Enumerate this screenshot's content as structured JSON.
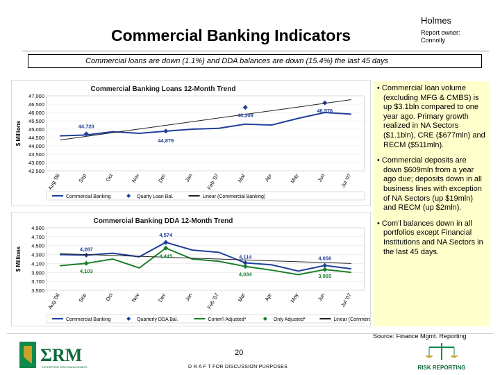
{
  "header": {
    "title": "Commercial Banking Indicators",
    "owner_name": "Holmes",
    "owner_label": "Report owner:",
    "owner_person": "Connolly"
  },
  "summary": "Commercial loans are down (1.1%) and DDA balances are down (15.4%) the last 45 days",
  "chart_data": [
    {
      "type": "line",
      "title": "Commercial Banking Loans 12-Month Trend",
      "ylabel": "$ Millions",
      "xlabel": "",
      "ylim": [
        42500,
        47000
      ],
      "yticks": [
        "47,000",
        "46,500",
        "46,000",
        "45,500",
        "45,000",
        "44,500",
        "44,000",
        "43,500",
        "43,000",
        "42,500"
      ],
      "ytick_values": [
        47000,
        46500,
        46000,
        45500,
        45000,
        44500,
        44000,
        43500,
        43000,
        42500
      ],
      "categories": [
        "Aug '06",
        "Sep",
        "Oct",
        "Nov",
        "Dec",
        "Jan",
        "Feb '07",
        "Mar",
        "Apr",
        "May",
        "Jun",
        "Jul '07"
      ],
      "series": [
        {
          "name": "Commercial Banking",
          "values": [
            44600,
            44650,
            44850,
            44750,
            44879,
            45000,
            45050,
            45300,
            45250,
            45650,
            46000,
            45900
          ],
          "color": "#1f3f99"
        },
        {
          "name": "Quarty Loan Bal.",
          "values": [
            null,
            44720,
            null,
            null,
            44879,
            null,
            null,
            46308,
            null,
            null,
            46576,
            null
          ],
          "color": "#1f3f99"
        },
        {
          "name": "Linear (Commercial Banking)",
          "values": [
            44350,
            44570,
            44790,
            45010,
            45230,
            45450,
            45670,
            45890,
            46110,
            46330,
            46550,
            46770
          ],
          "color": "#222222"
        }
      ],
      "annotations": [
        "44,720",
        "44,879",
        "46,308",
        "46,576"
      ],
      "legend": [
        "Commercial Banking",
        "Quarty Loan Bal.",
        "Linear (Commercial Banking)"
      ],
      "legend_position": "bottom"
    },
    {
      "type": "line",
      "title": "Commercial Banking DDA 12-Month Trend",
      "ylabel": "$ Millions",
      "xlabel": "",
      "ylim": [
        3500,
        4900
      ],
      "yticks": [
        "4,900",
        "4,700",
        "4,500",
        "4,300",
        "4,100",
        "3,900",
        "3,700",
        "3,500"
      ],
      "ytick_values": [
        4900,
        4700,
        4500,
        4300,
        4100,
        3900,
        3700,
        3500
      ],
      "categories": [
        "Aug '06",
        "Sep",
        "Oct",
        "Nov",
        "Dec",
        "Jan",
        "Feb '07",
        "Mar",
        "Apr",
        "May",
        "Jun",
        "Jul '07"
      ],
      "series": [
        {
          "name": "Commercial Banking",
          "values": [
            4300,
            4287,
            4330,
            4250,
            4574,
            4400,
            4350,
            4114,
            4070,
            3930,
            4056,
            3980
          ],
          "color": "#1f3f99"
        },
        {
          "name": "Quarterly DDA Bal.",
          "values": [
            null,
            4287,
            null,
            null,
            4574,
            null,
            null,
            4114,
            null,
            null,
            4056,
            null
          ],
          "color": "#1f3f99"
        },
        {
          "name": "Comm'l Adjusted*",
          "values": [
            4050,
            4103,
            4200,
            4000,
            4445,
            4200,
            4150,
            4034,
            3950,
            3850,
            3965,
            3900
          ],
          "color": "#1a7f2a"
        },
        {
          "name": "Only Adjusted*",
          "values": [
            null,
            4103,
            null,
            null,
            4445,
            null,
            null,
            4034,
            null,
            null,
            3965,
            null
          ],
          "color": "#1a7f2a"
        },
        {
          "name": "Linear (Commercial Banking)",
          "values": [
            4320,
            4300,
            4280,
            4260,
            4240,
            4220,
            4200,
            4180,
            4160,
            4140,
            4120,
            4100
          ],
          "color": "#222222"
        }
      ],
      "annotations": [
        "4,287",
        "4,574",
        "4,114",
        "4,056",
        "4,103",
        "4,445",
        "4,034",
        "3,965"
      ],
      "legend": [
        "Commercial Banking",
        "Quarterly DDA Bal.",
        "Comm'l Adjusted*",
        "Only Adjusted*",
        "Linear (Commercial Banking)"
      ],
      "legend_position": "bottom"
    }
  ],
  "bullets": [
    "• Commercial loan volume (excluding MFG & CMBS) is up $3.1bln compared to one year ago. Primary growth realized in NA Sectors ($1.1bln), CRE ($677mln) and RECM ($511mln).",
    "• Commercial deposits are down $609mln from a year ago due; deposits down in all business lines with exception of NA Sectors (up $19mln) and RECM (up $2mln).",
    "• Com'l balances down in all portfolios except Financial Institutions and NA Sectors in the last 45 days."
  ],
  "source": "Source: Finance Mgmt. Reporting",
  "page_number": "20",
  "draft_note": "D R A F T FOR DISCUSSION PURPOSES",
  "logo_left": {
    "mark": "ΣRM",
    "tag": "ENTERPRISE RISK MANAGEMENT"
  },
  "logo_right": {
    "text": "RISK REPORTING"
  },
  "colors": {
    "blue": "#1f3f99",
    "green": "#1a7f2a",
    "trend": "#222222",
    "note_bg": "#ffffcc",
    "brand_green": "#0e8a4a",
    "brand_gold": "#c9a227"
  }
}
